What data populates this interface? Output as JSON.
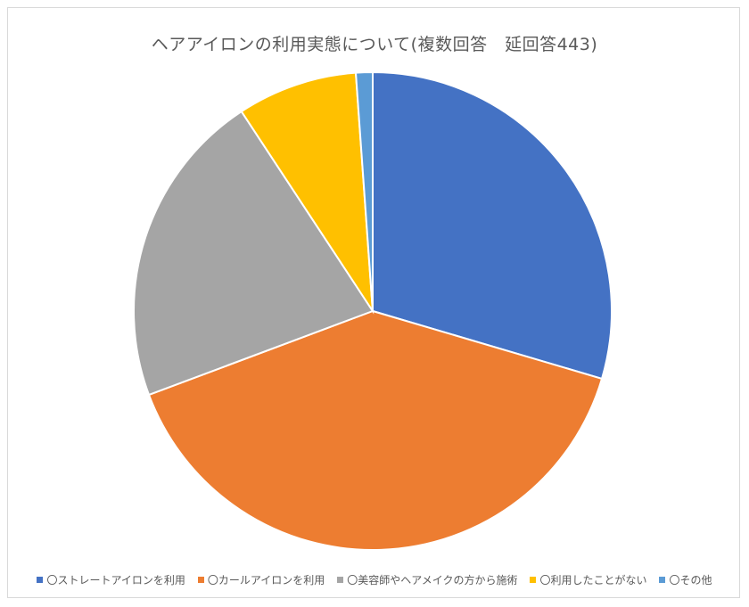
{
  "chart_data": {
    "type": "pie",
    "title": "ヘアアイロンの利用実態について(複数回答　延回答443)",
    "categories": [
      "〇ストレートアイロンを利用",
      "〇カールアイロンを利用",
      "〇美容師やヘアメイクの方から施術",
      "〇利用したことがない",
      "〇その他"
    ],
    "values": [
      131,
      176,
      95,
      36,
      5
    ],
    "colors": [
      "#4472c4",
      "#ed7d31",
      "#a5a5a5",
      "#ffc000",
      "#5b9bd5"
    ],
    "legend_position": "bottom"
  }
}
